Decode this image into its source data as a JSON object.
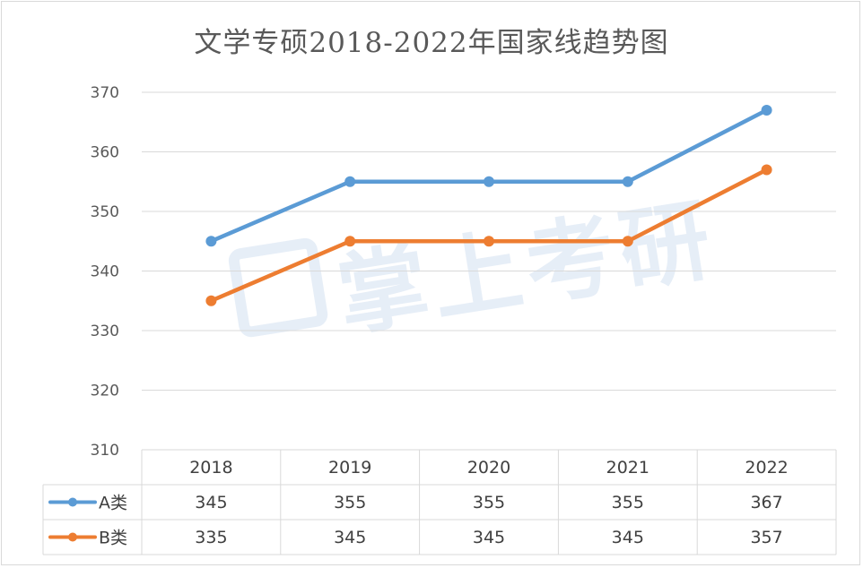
{
  "chart_data": {
    "type": "line",
    "title": "文学专硕2018-2022年国家线趋势图",
    "categories": [
      "2018",
      "2019",
      "2020",
      "2021",
      "2022"
    ],
    "series": [
      {
        "name": "A类",
        "values": [
          345,
          355,
          355,
          355,
          367
        ],
        "color": "#5b9bd5"
      },
      {
        "name": "B类",
        "values": [
          335,
          345,
          345,
          345,
          357
        ],
        "color": "#ed7d31"
      }
    ],
    "ylim": [
      310,
      370
    ],
    "yticks": [
      "310",
      "320",
      "330",
      "340",
      "350",
      "360",
      "370"
    ],
    "grid": true,
    "legend": "data-table-left"
  },
  "watermark": {
    "text": "掌上考研",
    "icon": "graduation-book-icon"
  },
  "colors": {
    "grid": "#d9d9d9",
    "text": "#595959"
  }
}
